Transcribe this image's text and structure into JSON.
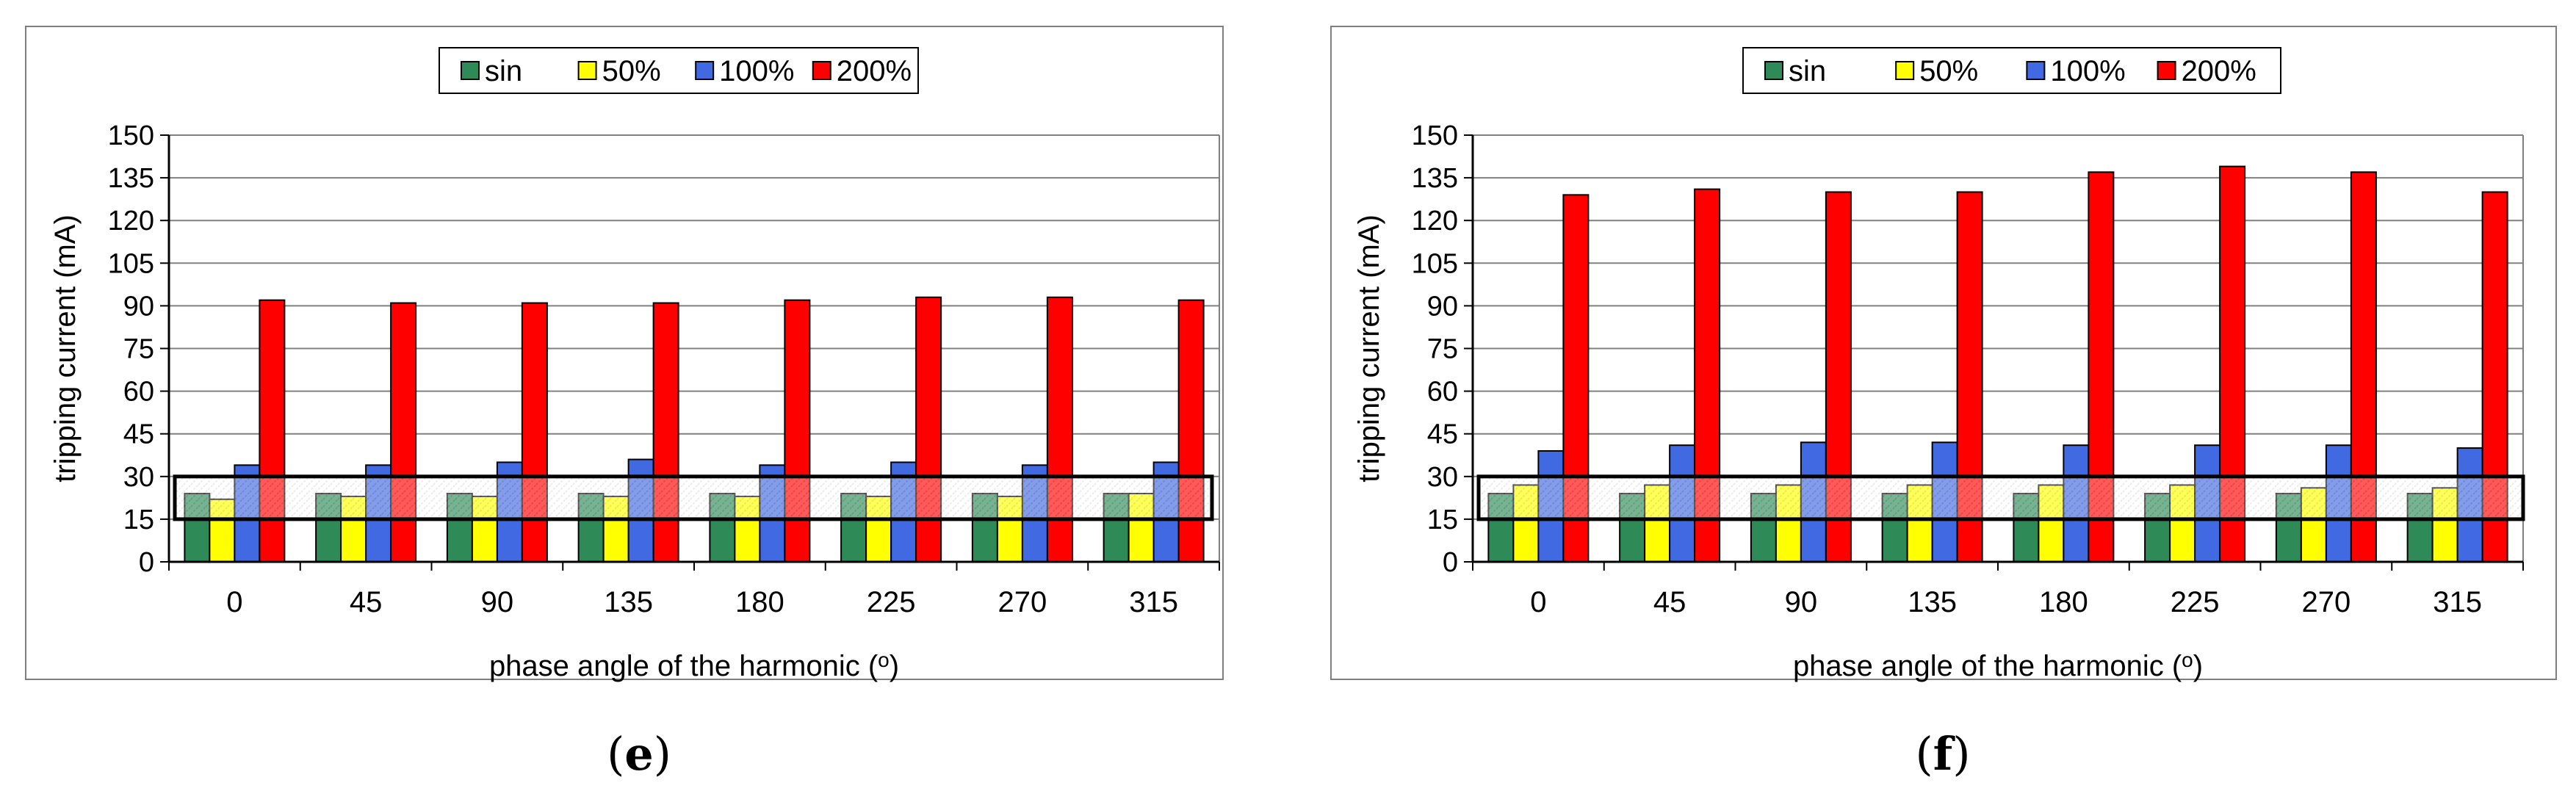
{
  "charts": [
    {
      "label_open": "(",
      "label_letter": "e",
      "label_close": ")"
    },
    {
      "label_open": "(",
      "label_letter": "f",
      "label_close": ")"
    }
  ],
  "colors": {
    "sin": "#2e8b57",
    "50%": "#ffff00",
    "100%": "#4169e1",
    "200%": "#ff0000",
    "frame": "#000000",
    "grid": "#808080"
  },
  "chart_data": [
    {
      "type": "bar",
      "title": "",
      "xlabel": "phase angle of the harmonic (o)",
      "ylabel": "tripping current (mA)",
      "ylim": [
        0,
        150
      ],
      "yticks": [
        "0",
        "15",
        "30",
        "45",
        "60",
        "75",
        "90",
        "105",
        "120",
        "135",
        "150"
      ],
      "categories": [
        "0",
        "45",
        "90",
        "135",
        "180",
        "225",
        "270",
        "315"
      ],
      "legend_position": "top",
      "grid": true,
      "band": [
        15,
        30
      ],
      "series": [
        {
          "name": "sin",
          "values": [
            24,
            24,
            24,
            24,
            24,
            24,
            24,
            24
          ]
        },
        {
          "name": "50%",
          "values": [
            22,
            23,
            23,
            23,
            23,
            23,
            23,
            24
          ]
        },
        {
          "name": "100%",
          "values": [
            34,
            34,
            35,
            36,
            34,
            35,
            34,
            35
          ]
        },
        {
          "name": "200%",
          "values": [
            92,
            91,
            91,
            91,
            92,
            93,
            93,
            92
          ]
        }
      ]
    },
    {
      "type": "bar",
      "title": "",
      "xlabel": "phase angle of the harmonic (o)",
      "ylabel": "tripping current (mA)",
      "ylim": [
        0,
        150
      ],
      "yticks": [
        "0",
        "15",
        "30",
        "45",
        "60",
        "75",
        "90",
        "105",
        "120",
        "135",
        "150"
      ],
      "categories": [
        "0",
        "45",
        "90",
        "135",
        "180",
        "225",
        "270",
        "315"
      ],
      "legend_position": "top",
      "grid": true,
      "band": [
        15,
        30
      ],
      "series": [
        {
          "name": "sin",
          "values": [
            24,
            24,
            24,
            24,
            24,
            24,
            24,
            24
          ]
        },
        {
          "name": "50%",
          "values": [
            27,
            27,
            27,
            27,
            27,
            27,
            26,
            26
          ]
        },
        {
          "name": "100%",
          "values": [
            39,
            41,
            42,
            42,
            41,
            41,
            41,
            40
          ]
        },
        {
          "name": "200%",
          "values": [
            129,
            131,
            130,
            130,
            137,
            139,
            137,
            130
          ]
        }
      ]
    }
  ]
}
